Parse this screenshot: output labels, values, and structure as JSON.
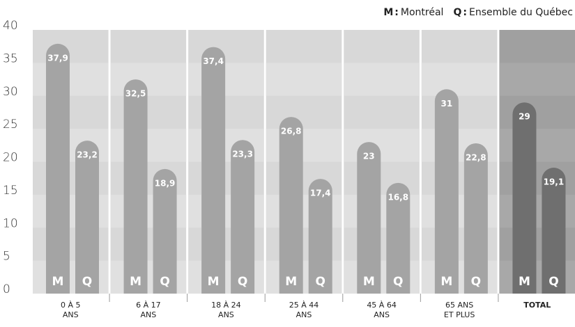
{
  "chart_data": {
    "type": "bar",
    "categories": [
      [
        "0 À 5",
        "ANS"
      ],
      [
        "6 À 17",
        "ANS"
      ],
      [
        "18 À 24",
        "ANS"
      ],
      [
        "25 À 44",
        "ANS"
      ],
      [
        "45 À 64",
        "ANS"
      ],
      [
        "65 ANS",
        "ET PLUS"
      ],
      [
        "TOTAL"
      ]
    ],
    "separator": ":",
    "series": [
      {
        "code": "M",
        "name": "Montréal",
        "color": "#a4a4a4",
        "values": [
          37.9,
          32.5,
          37.4,
          26.8,
          23,
          31,
          29
        ],
        "value_labels": [
          "37,9",
          "32,5",
          "37,4",
          "26,8",
          "23",
          "31",
          "29"
        ]
      },
      {
        "code": "Q",
        "name": "Ensemble du Québec",
        "color": "#a4a4a4",
        "values": [
          23.2,
          18.9,
          23.3,
          17.4,
          16.8,
          22.8,
          19.1
        ],
        "value_labels": [
          "23,2",
          "18,9",
          "23,3",
          "17,4",
          "16,8",
          "22,8",
          "19,1"
        ]
      }
    ],
    "highlight_index": 6,
    "highlight_color": "#6f6f6f",
    "ylim": [
      0,
      40
    ],
    "yticks": [
      0,
      5,
      10,
      15,
      20,
      25,
      30,
      35,
      40
    ],
    "grid": true
  }
}
